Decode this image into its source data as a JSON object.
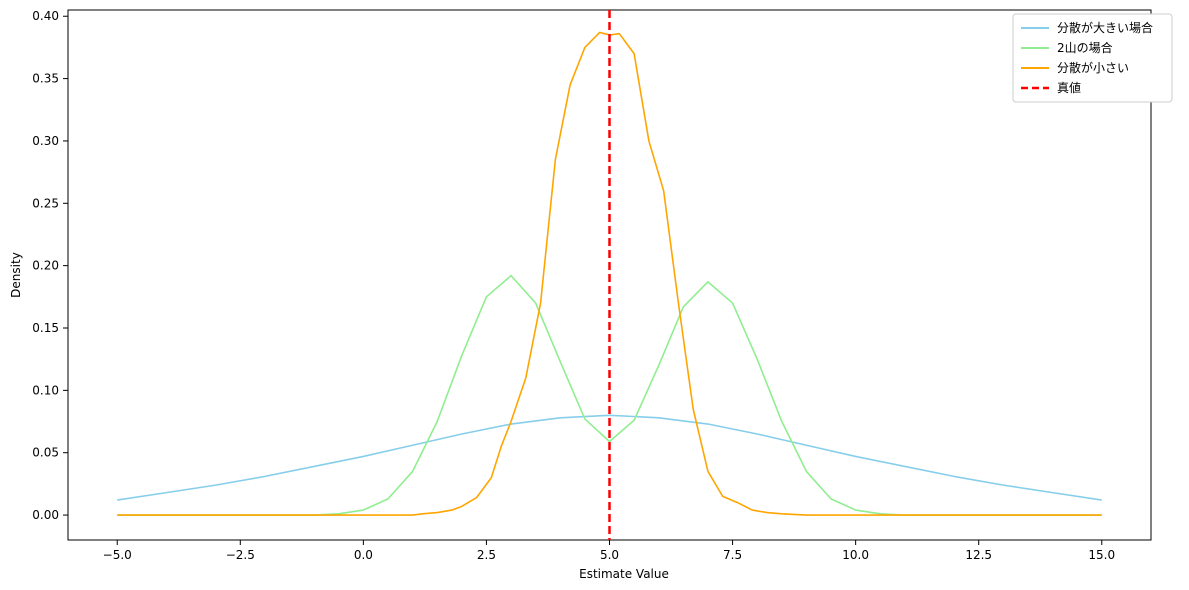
{
  "chart_data": {
    "type": "line",
    "title": "",
    "xlabel": "Estimate Value",
    "ylabel": "Density",
    "xlim": [
      -6,
      16
    ],
    "ylim": [
      -0.02,
      0.405
    ],
    "xticks": [
      -5.0,
      -2.5,
      0.0,
      2.5,
      5.0,
      7.5,
      10.0,
      12.5,
      15.0
    ],
    "xtick_labels": [
      "−5.0",
      "−2.5",
      "0.0",
      "2.5",
      "5.0",
      "7.5",
      "10.0",
      "12.5",
      "15.0"
    ],
    "yticks": [
      0.0,
      0.05,
      0.1,
      0.15,
      0.2,
      0.25,
      0.3,
      0.35,
      0.4
    ],
    "ytick_labels": [
      "0.00",
      "0.05",
      "0.10",
      "0.15",
      "0.20",
      "0.25",
      "0.30",
      "0.35",
      "0.40"
    ],
    "grid": false,
    "legend_position": "top-right",
    "series": [
      {
        "name": "分散が大きい場合",
        "color": "#87ceeb",
        "x": [
          -5.0,
          -4.0,
          -3.0,
          -2.0,
          -1.0,
          0.0,
          1.0,
          2.0,
          3.0,
          4.0,
          5.0,
          6.0,
          7.0,
          8.0,
          9.0,
          10.0,
          11.0,
          12.0,
          13.0,
          14.0,
          15.0
        ],
        "y": [
          0.012,
          0.018,
          0.024,
          0.031,
          0.039,
          0.047,
          0.056,
          0.065,
          0.073,
          0.078,
          0.08,
          0.078,
          0.073,
          0.065,
          0.056,
          0.047,
          0.039,
          0.031,
          0.024,
          0.018,
          0.012
        ]
      },
      {
        "name": "2山の場合",
        "color": "#90ee90",
        "x": [
          -5.0,
          -1.0,
          -0.5,
          0.0,
          0.5,
          1.0,
          1.5,
          2.0,
          2.5,
          3.0,
          3.5,
          4.0,
          4.5,
          5.0,
          5.5,
          6.0,
          6.5,
          7.0,
          7.5,
          8.0,
          8.5,
          9.0,
          9.5,
          10.0,
          10.5,
          11.0,
          15.0
        ],
        "y": [
          0.0,
          0.0,
          0.001,
          0.004,
          0.013,
          0.035,
          0.075,
          0.128,
          0.175,
          0.192,
          0.17,
          0.123,
          0.077,
          0.059,
          0.076,
          0.12,
          0.167,
          0.187,
          0.17,
          0.125,
          0.075,
          0.035,
          0.013,
          0.004,
          0.001,
          0.0,
          0.0
        ]
      },
      {
        "name": "分散が小さい",
        "color": "#ffa500",
        "x": [
          -5.0,
          1.0,
          1.2,
          1.5,
          1.8,
          2.0,
          2.3,
          2.6,
          2.8,
          3.0,
          3.3,
          3.6,
          3.9,
          4.2,
          4.5,
          4.8,
          5.0,
          5.2,
          5.5,
          5.8,
          6.1,
          6.4,
          6.7,
          7.0,
          7.3,
          7.6,
          7.9,
          8.2,
          8.5,
          9.0,
          15.0
        ],
        "y": [
          0.0,
          0.0,
          0.001,
          0.002,
          0.004,
          0.007,
          0.014,
          0.03,
          0.055,
          0.075,
          0.11,
          0.17,
          0.285,
          0.345,
          0.375,
          0.387,
          0.385,
          0.386,
          0.37,
          0.3,
          0.26,
          0.17,
          0.085,
          0.035,
          0.015,
          0.01,
          0.004,
          0.002,
          0.001,
          0.0,
          0.0
        ]
      }
    ],
    "vline": {
      "name": "真値",
      "x": 5.0,
      "color": "#ff0000",
      "style": "dashed"
    }
  }
}
